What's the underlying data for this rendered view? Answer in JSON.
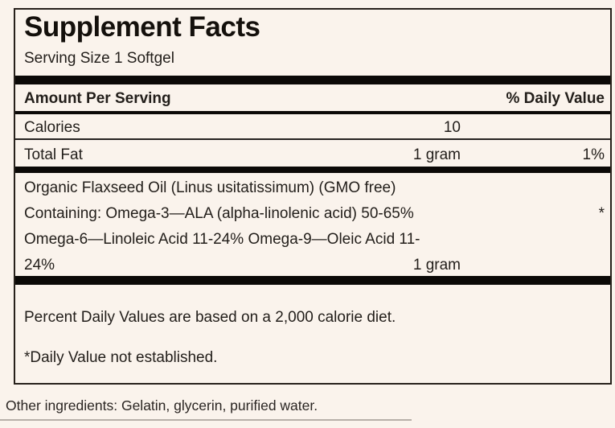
{
  "colors": {
    "background": "#FAF3EC",
    "text": "#221E1A",
    "bar": "#0B0907"
  },
  "label": {
    "title": "Supplement Facts",
    "serving_size": "Serving Size 1 Softgel",
    "columns": {
      "amount_header": "Amount Per Serving",
      "dv_header": "% Daily Value"
    },
    "rows": [
      {
        "name": "Calories",
        "amount": "10",
        "dv": ""
      },
      {
        "name": "Total Fat",
        "amount": "1 gram",
        "dv": "1%"
      }
    ],
    "ingredient_block": {
      "line1": "Organic Flaxseed Oil (Linus usitatissimum) (GMO free)",
      "line2": "Containing: Omega-3—ALA (alpha-linolenic acid) 50-65%",
      "line2_dv": "*",
      "line3": "Omega-6—Linoleic Acid 11-24% Omega-9—Oleic Acid 11-",
      "line4": "24%",
      "line4_amount": "1 gram"
    },
    "footnotes": {
      "dv_basis": "Percent Daily Values are based on a 2,000 calorie diet.",
      "not_established": "*Daily Value not established."
    },
    "other_ingredients": "Other ingredients: Gelatin, glycerin, purified water."
  }
}
